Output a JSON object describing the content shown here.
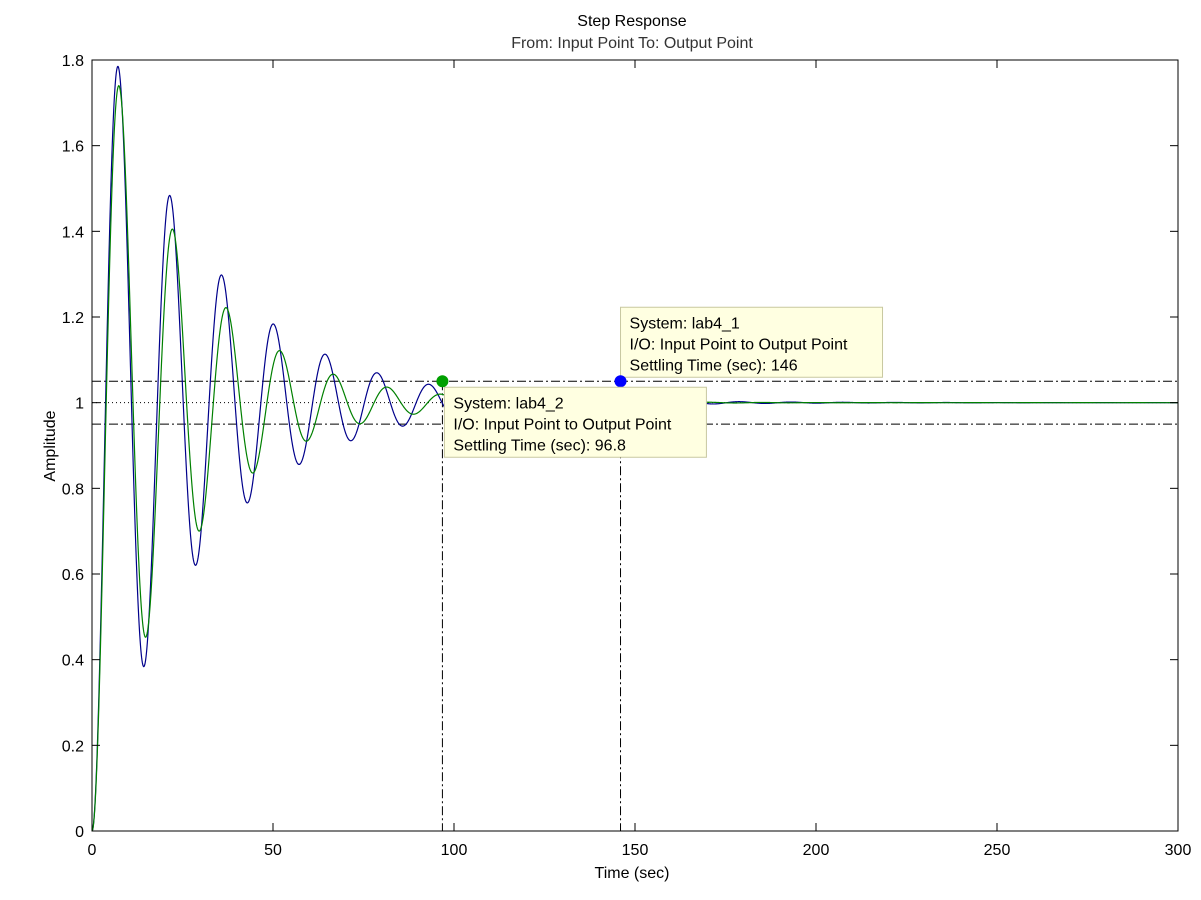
{
  "chart_data": {
    "type": "line",
    "title": "Step Response",
    "subtitle": "From: Input Point  To: Output Point",
    "xlabel": "Time (sec)",
    "ylabel": "Amplitude",
    "xlim": [
      0,
      300
    ],
    "ylim": [
      0,
      1.8
    ],
    "x_ticks": [
      "0",
      "50",
      "100",
      "150",
      "200",
      "250",
      "300"
    ],
    "y_ticks": [
      "0",
      "0.2",
      "0.4",
      "0.6",
      "0.8",
      "1",
      "1.2",
      "1.4",
      "1.6",
      "1.8"
    ],
    "grid": false,
    "reference_lines": {
      "final_value": 1,
      "settling_band_upper": 1.05,
      "settling_band_lower": 0.95
    },
    "series": [
      {
        "name": "lab4_1",
        "color": "#00008b",
        "model": {
          "final_value": 1,
          "peak": 1.785,
          "peak_time": 7.3,
          "period": 14.3
        },
        "settling_time": 146,
        "settling_value": 1.05
      },
      {
        "name": "lab4_2",
        "color": "#008000",
        "model": {
          "final_value": 1,
          "peak": 1.74,
          "peak_time": 7.6,
          "period": 14.8
        },
        "settling_time": 96.8,
        "settling_value": 1.05
      }
    ],
    "annotations": [
      {
        "series": "lab4_1",
        "marker_color": "#0000ff",
        "lines": [
          "System: lab4_1",
          "I/O: Input Point to Output Point",
          "Settling Time (sec): 146"
        ]
      },
      {
        "series": "lab4_2",
        "marker_color": "#00a000",
        "lines": [
          "System: lab4_2",
          "I/O: Input Point to Output Point",
          "Settling Time (sec): 96.8"
        ]
      }
    ]
  }
}
